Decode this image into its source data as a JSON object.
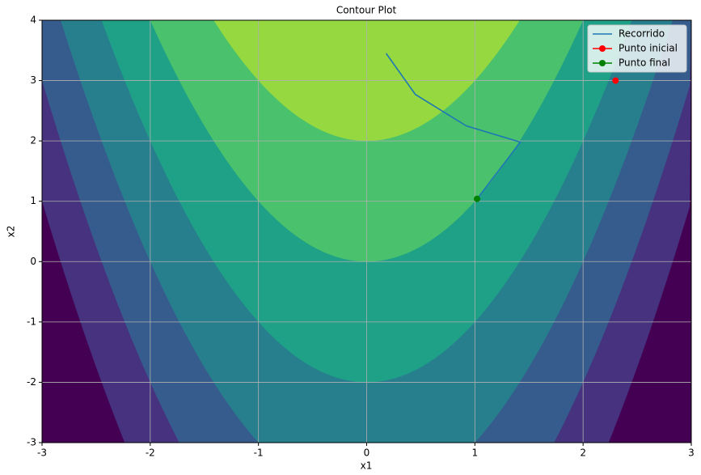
{
  "chart_data": {
    "type": "contour",
    "title": "Contour Plot",
    "x_label": "x1",
    "y_label": "x2",
    "xlim": [
      -3,
      3
    ],
    "ylim": [
      -3,
      4
    ],
    "xticks": [
      -3,
      -2,
      -1,
      0,
      1,
      2,
      3
    ],
    "yticks": [
      -3,
      -2,
      -1,
      0,
      1,
      2,
      3,
      4
    ],
    "grid": true,
    "legend": "upper right",
    "series": [
      {
        "name": "Recorrido",
        "kind": "line",
        "color": "#1f77b4",
        "x": [
          0.18,
          0.45,
          0.92,
          1.42,
          1.02
        ],
        "y": [
          3.45,
          2.77,
          2.25,
          1.98,
          1.04
        ]
      },
      {
        "name": "Punto inicial",
        "kind": "point",
        "color": "#ff0000",
        "x": [
          2.3
        ],
        "y": [
          3.0
        ]
      },
      {
        "name": "Punto final",
        "kind": "point",
        "color": "#008000",
        "x": [
          1.02
        ],
        "y": [
          1.04
        ]
      }
    ]
  }
}
